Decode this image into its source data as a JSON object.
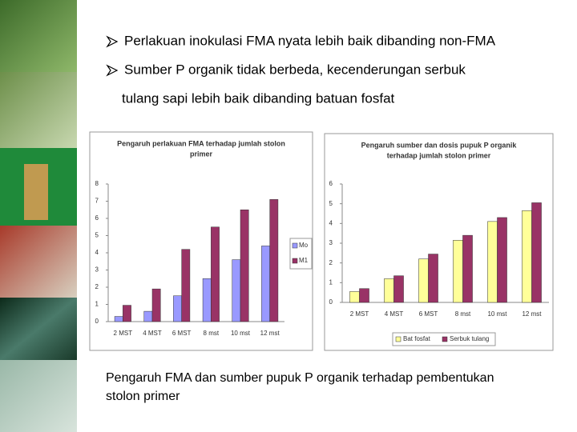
{
  "bullets": [
    [
      "Perlakuan inokulasi FMA nyata lebih baik dibanding non-FMA"
    ],
    [
      "Sumber P organik tidak berbeda, kecenderungan serbuk",
      "tulang sapi lebih baik dibanding batuan fosfat"
    ]
  ],
  "caption": [
    "Pengaruh FMA dan sumber pupuk P organik terhadap pembentukan",
    "stolon primer"
  ],
  "chart_data": [
    {
      "type": "bar",
      "title": [
        "Pengaruh perlakuan FMA terhadap jumlah stolon",
        "primer"
      ],
      "categories": [
        "2 MST",
        "4 MST",
        "6 MST",
        "8 mst",
        "10 mst",
        "12 mst"
      ],
      "series": [
        {
          "name": "Mo",
          "color": "#9999ff",
          "values": [
            0.3,
            0.6,
            1.5,
            2.5,
            3.6,
            4.4
          ]
        },
        {
          "name": "M1",
          "color": "#993366",
          "values": [
            0.95,
            1.9,
            4.2,
            5.5,
            6.5,
            7.1
          ]
        }
      ],
      "ylim": [
        0,
        8
      ],
      "yticks": [
        0,
        1,
        2,
        3,
        4,
        5,
        6,
        7,
        8
      ],
      "legend": "right"
    },
    {
      "type": "bar",
      "title": [
        "Pengaruh sumber dan dosis pupuk P organik",
        "terhadap jumlah stolon primer"
      ],
      "categories": [
        "2 MST",
        "4 MST",
        "6 MST",
        "8 mst",
        "10 mst",
        "12 mst"
      ],
      "series": [
        {
          "name": "Bat fosfat",
          "color": "#ffff99",
          "values": [
            0.55,
            1.2,
            2.2,
            3.15,
            4.1,
            4.65
          ]
        },
        {
          "name": "Serbuk tulang",
          "color": "#993366",
          "values": [
            0.7,
            1.35,
            2.45,
            3.4,
            4.3,
            5.05
          ]
        }
      ],
      "ylim": [
        0,
        6
      ],
      "yticks": [
        0,
        1,
        2,
        3,
        4,
        5,
        6
      ],
      "legend": "bottom"
    }
  ]
}
